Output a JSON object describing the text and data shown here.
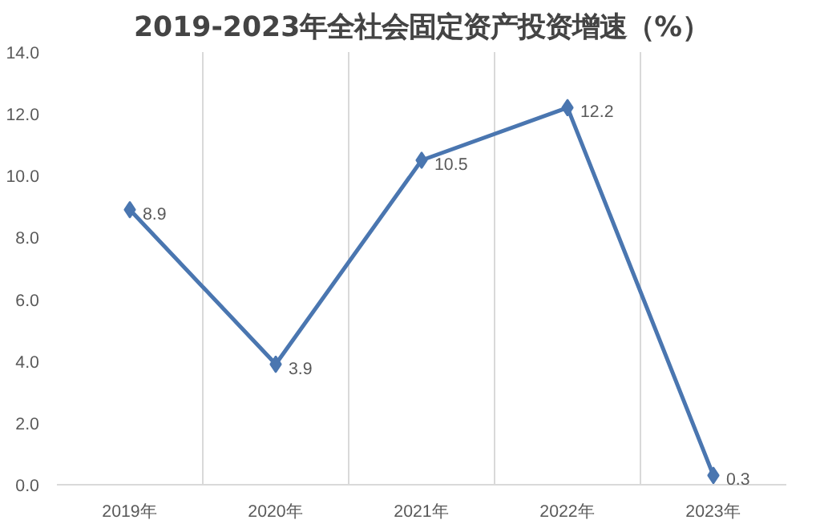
{
  "chart_data": {
    "type": "line",
    "title": "2019-2023年全社会固定资产投资增速（%）",
    "categories": [
      "2019年",
      "2020年",
      "2021年",
      "2022年",
      "2023年"
    ],
    "series": [
      {
        "color": "#4a76b0",
        "values": [
          8.9,
          3.9,
          10.5,
          12.2,
          0.3
        ]
      }
    ],
    "ylim": [
      0,
      14
    ],
    "yticks": [
      {
        "value": 0,
        "label": "0.0"
      },
      {
        "value": 2,
        "label": "2.0"
      },
      {
        "value": 4,
        "label": "4.0"
      },
      {
        "value": 6,
        "label": "6.0"
      },
      {
        "value": 8,
        "label": "8.0"
      },
      {
        "value": 10,
        "label": "10.0"
      },
      {
        "value": 12,
        "label": "12.0"
      },
      {
        "value": 14,
        "label": "14.0"
      }
    ],
    "grid": "x",
    "marker": "diamond",
    "line_style": "solid",
    "data_labels": true
  }
}
